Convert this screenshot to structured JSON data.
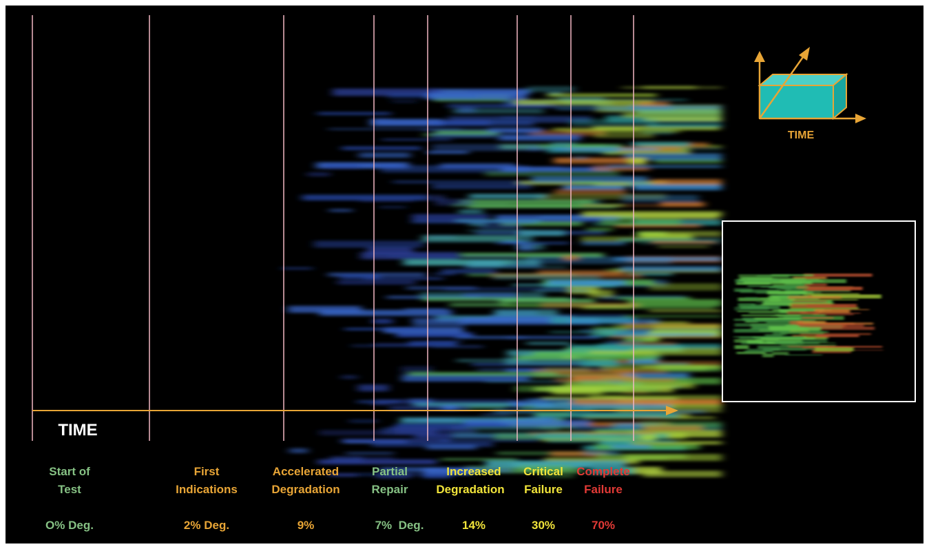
{
  "time_label": "TIME",
  "icon": {
    "label": "TIME"
  },
  "stages": [
    {
      "label": [
        "Start of",
        "Test"
      ],
      "degradation": "O% Deg."
    },
    {
      "label": [
        "First",
        "Indications"
      ],
      "degradation": "2% Deg."
    },
    {
      "label": [
        "Accelerated",
        "Degradation"
      ],
      "degradation": "9%"
    },
    {
      "label": [
        "Partial",
        "Repair"
      ],
      "degradation": "7%  Deg."
    },
    {
      "label": [
        "Increased",
        "Degradation"
      ],
      "degradation": "14%"
    },
    {
      "label": [
        "Critical",
        "Failure"
      ],
      "degradation": "30%"
    },
    {
      "label": [
        "Complete",
        "Failure"
      ],
      "degradation": "70%"
    }
  ]
}
